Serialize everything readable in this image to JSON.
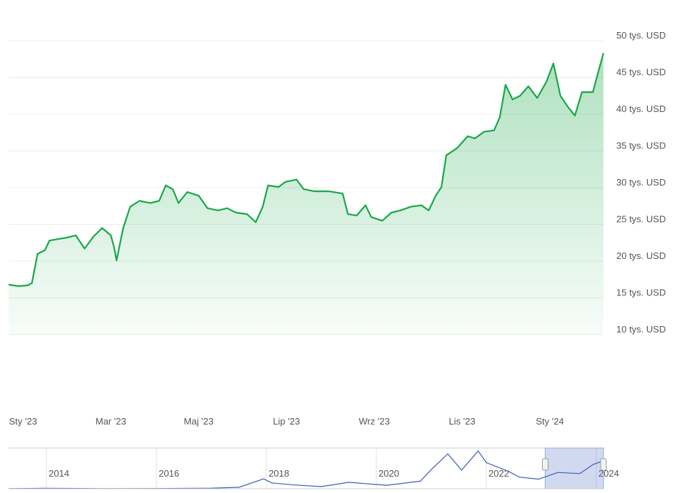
{
  "chart_data": [
    {
      "type": "area-line",
      "color": "#17a847",
      "x": [
        -0.33,
        -0.1,
        0.1,
        0.2,
        0.33,
        0.5,
        0.6,
        0.8,
        1.0,
        1.2,
        1.4,
        1.6,
        1.8,
        2.0,
        2.07,
        2.13,
        2.28,
        2.44,
        2.65,
        2.9,
        3.1,
        3.25,
        3.41,
        3.54,
        3.74,
        4.0,
        4.2,
        4.44,
        4.65,
        4.85,
        5.1,
        5.3,
        5.46,
        5.58,
        5.82,
        5.98,
        6.23,
        6.39,
        6.63,
        6.96,
        7.28,
        7.4,
        7.6,
        7.8,
        7.93,
        8.18,
        8.39,
        8.59,
        8.83,
        9.07,
        9.24,
        9.4,
        9.53,
        9.64,
        9.89,
        10.13,
        10.29,
        10.5,
        10.73,
        10.86,
        10.99,
        11.15,
        11.32,
        11.51,
        11.71,
        11.92,
        12.08,
        12.24,
        12.41,
        12.57,
        12.73,
        12.98,
        13.11,
        13.22
      ],
      "values": [
        16800,
        16600,
        16700,
        17000,
        21000,
        21500,
        22800,
        23000,
        23200,
        23500,
        21700,
        23300,
        24500,
        23500,
        22000,
        20100,
        24500,
        27400,
        28200,
        27900,
        28200,
        30300,
        29800,
        27900,
        29400,
        28900,
        27200,
        26900,
        27200,
        26600,
        26400,
        25300,
        27400,
        30300,
        30100,
        30800,
        31100,
        29800,
        29500,
        29500,
        29200,
        26400,
        26200,
        27600,
        26000,
        25500,
        26600,
        26900,
        27400,
        27600,
        26900,
        28900,
        30100,
        34400,
        35400,
        37000,
        36700,
        37600,
        37800,
        39600,
        44000,
        42000,
        42500,
        43800,
        42200,
        44400,
        46900,
        42500,
        41000,
        39800,
        43000,
        43000,
        45900,
        48300
      ],
      "xlim": [
        -0.33,
        13.22
      ],
      "xticks": [
        {
          "value": 0,
          "label": "Sty '23"
        },
        {
          "value": 2,
          "label": "Mar '23"
        },
        {
          "value": 4,
          "label": "Maj '23"
        },
        {
          "value": 6,
          "label": "Lip '23"
        },
        {
          "value": 8,
          "label": "Wrz '23"
        },
        {
          "value": 10,
          "label": "Lis '23"
        },
        {
          "value": 12,
          "label": "Sty '24"
        }
      ],
      "ylim": [
        10000,
        50000
      ],
      "yticks": [
        {
          "value": 10000,
          "label": "10 tys. USD"
        },
        {
          "value": 15000,
          "label": "15 tys. USD"
        },
        {
          "value": 20000,
          "label": "20 tys. USD"
        },
        {
          "value": 25000,
          "label": "25 tys. USD"
        },
        {
          "value": 30000,
          "label": "30 tys. USD"
        },
        {
          "value": 35000,
          "label": "35 tys. USD"
        },
        {
          "value": 40000,
          "label": "40 tys. USD"
        },
        {
          "value": 45000,
          "label": "45 tys. USD"
        },
        {
          "value": 50000,
          "label": "50 tys. USD"
        }
      ],
      "grid": true
    },
    {
      "type": "navigator",
      "color": "#3a5fb0",
      "x": [
        2013.31,
        2014,
        2015,
        2016,
        2017,
        2017.5,
        2017.95,
        2018.1,
        2018.5,
        2019,
        2019.5,
        2020,
        2020.2,
        2020.8,
        2021,
        2021.3,
        2021.55,
        2021.85,
        2022,
        2022.4,
        2022.6,
        2022.95,
        2023.3,
        2023.7,
        2023.95,
        2024.13
      ],
      "values": [
        100,
        800,
        300,
        400,
        1000,
        2500,
        17000,
        10000,
        6500,
        3700,
        11000,
        7200,
        6000,
        13000,
        33000,
        60000,
        32000,
        65000,
        45000,
        30000,
        20000,
        16500,
        28000,
        26000,
        42000,
        48000
      ],
      "xlim": [
        2013.31,
        2024.13
      ],
      "xticks": [
        2014,
        2016,
        2018,
        2020,
        2022,
        2024
      ],
      "ylim": [
        0,
        70000
      ],
      "selection": [
        2023.07,
        2024.13
      ]
    }
  ]
}
